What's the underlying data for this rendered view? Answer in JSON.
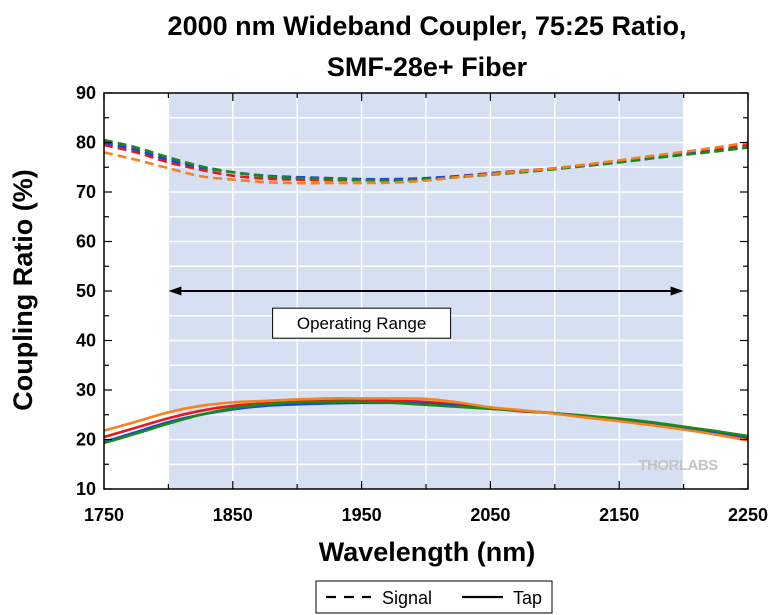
{
  "chart_data": {
    "type": "line",
    "title_lines": [
      "2000 nm Wideband Coupler, 75:25 Ratio,",
      "SMF-28e+ Fiber"
    ],
    "xlabel": "Wavelength (nm)",
    "ylabel": "Coupling Ratio (%)",
    "xlim": [
      1750,
      2250
    ],
    "ylim": [
      10,
      90
    ],
    "x_ticks": [
      1750,
      1850,
      1950,
      2050,
      2150,
      2250
    ],
    "y_ticks": [
      10,
      20,
      30,
      40,
      50,
      60,
      70,
      80,
      90
    ],
    "grid": true,
    "shaded_range": [
      1800,
      2200
    ],
    "shaded_color": "#d6e0f2",
    "annotation": {
      "label": "Operating Range",
      "arrow_from": 1800,
      "arrow_to": 2200,
      "arrow_y": 50,
      "label_x": 1950,
      "label_y": 43.5
    },
    "watermark": "THORLABS",
    "legend": {
      "placement": "bottom-center",
      "entries": [
        {
          "label": "Signal",
          "style": "dashed"
        },
        {
          "label": "Tap",
          "style": "solid"
        }
      ]
    },
    "x": [
      1750,
      1775,
      1800,
      1825,
      1850,
      1875,
      1900,
      1925,
      1950,
      1975,
      2000,
      2025,
      2050,
      2075,
      2100,
      2125,
      2150,
      2175,
      2200,
      2225,
      2250
    ],
    "series": [
      {
        "role": "Signal",
        "style": "dashed",
        "color": "#e41a1c",
        "values": [
          79.5,
          78,
          76,
          74.5,
          73.3,
          72.7,
          72.5,
          72.4,
          72.4,
          72.5,
          72.7,
          73.2,
          73.8,
          74.3,
          74.8,
          75.5,
          76.2,
          77,
          77.8,
          78.6,
          79.5
        ]
      },
      {
        "role": "Signal",
        "style": "dashed",
        "color": "#1f3fe0",
        "values": [
          80,
          78.5,
          76.5,
          75,
          74,
          73.3,
          73,
          72.8,
          72.6,
          72.6,
          72.8,
          73.2,
          73.7,
          74.2,
          74.7,
          75.3,
          76,
          76.8,
          77.6,
          78.3,
          79
        ]
      },
      {
        "role": "Signal",
        "style": "dashed",
        "color": "#1a8a1a",
        "values": [
          80.5,
          79,
          77,
          75.2,
          74,
          73.2,
          72.8,
          72.6,
          72.4,
          72.3,
          72.6,
          73,
          73.5,
          74,
          74.6,
          75.3,
          76,
          76.8,
          77.5,
          78.2,
          79
        ]
      },
      {
        "role": "Signal",
        "style": "dashed",
        "color": "#f5821f",
        "values": [
          78,
          76.5,
          74.8,
          73.2,
          72.5,
          72,
          71.8,
          71.8,
          71.8,
          71.9,
          72.3,
          73,
          73.6,
          74.2,
          74.8,
          75.6,
          76.4,
          77.3,
          78.1,
          79,
          80
        ]
      },
      {
        "role": "Tap",
        "style": "solid",
        "color": "#e41a1c",
        "values": [
          20.5,
          22.4,
          24.3,
          25.8,
          26.8,
          27.3,
          27.6,
          27.8,
          27.8,
          27.8,
          27.6,
          27,
          26.3,
          25.7,
          25.3,
          24.6,
          23.9,
          23.1,
          22.3,
          21.3,
          20.2
        ]
      },
      {
        "role": "Tap",
        "style": "solid",
        "color": "#1f3fe0",
        "values": [
          19.5,
          21.5,
          23.5,
          25,
          26.1,
          26.8,
          27.1,
          27.3,
          27.4,
          27.4,
          27.2,
          26.8,
          26.3,
          25.8,
          25.3,
          24.7,
          24,
          23.2,
          22.4,
          21.5,
          20.5
        ]
      },
      {
        "role": "Tap",
        "style": "solid",
        "color": "#1a8a1a",
        "values": [
          19.3,
          21.2,
          23.2,
          25,
          26.3,
          27.1,
          27.5,
          27.6,
          27.6,
          27.4,
          27,
          26.6,
          26.2,
          25.8,
          25.3,
          24.8,
          24.2,
          23.5,
          22.6,
          21.7,
          20.7
        ]
      },
      {
        "role": "Tap",
        "style": "solid",
        "color": "#f5821f",
        "values": [
          21.8,
          23.6,
          25.5,
          26.8,
          27.5,
          27.8,
          28.1,
          28.3,
          28.3,
          28.3,
          28.2,
          27.5,
          26.5,
          25.9,
          25.2,
          24.4,
          23.7,
          22.9,
          22,
          21,
          19.8
        ]
      }
    ]
  }
}
